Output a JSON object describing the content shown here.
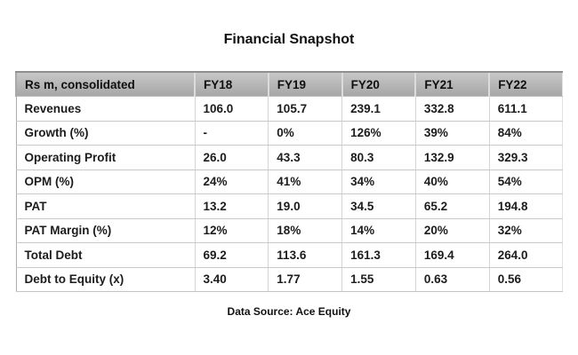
{
  "chart_data": {
    "type": "table",
    "title": "Financial Snapshot",
    "source_note": "Data Source: Ace Equity",
    "columns": [
      "Rs m, consolidated",
      "FY18",
      "FY19",
      "FY20",
      "FY21",
      "FY22"
    ],
    "rows": [
      [
        "Revenues",
        "106.0",
        "105.7",
        "239.1",
        "332.8",
        "611.1"
      ],
      [
        "Growth (%)",
        "-",
        "0%",
        "126%",
        "39%",
        "84%"
      ],
      [
        "Operating Profit",
        "26.0",
        "43.3",
        "80.3",
        "132.9",
        "329.3"
      ],
      [
        "OPM (%)",
        "24%",
        "41%",
        "34%",
        "40%",
        "54%"
      ],
      [
        "PAT",
        "13.2",
        "19.0",
        "34.5",
        "65.2",
        "194.8"
      ],
      [
        "PAT Margin (%)",
        "12%",
        "18%",
        "14%",
        "20%",
        "32%"
      ],
      [
        "Total Debt",
        "69.2",
        "113.6",
        "161.3",
        "169.4",
        "264.0"
      ],
      [
        "Debt to Equity (x)",
        "3.40",
        "1.77",
        "1.55",
        "0.63",
        "0.56"
      ]
    ],
    "colors": {
      "header_background_top": "#c7c7c7",
      "header_background_bottom": "#a7a7a7",
      "row_divider": "#c9c9c9",
      "text": "#1c1c1c",
      "background": "#ffffff"
    },
    "layout_hints": {
      "header_row_shaded": true,
      "grid": true,
      "values_alignment": "left"
    }
  }
}
